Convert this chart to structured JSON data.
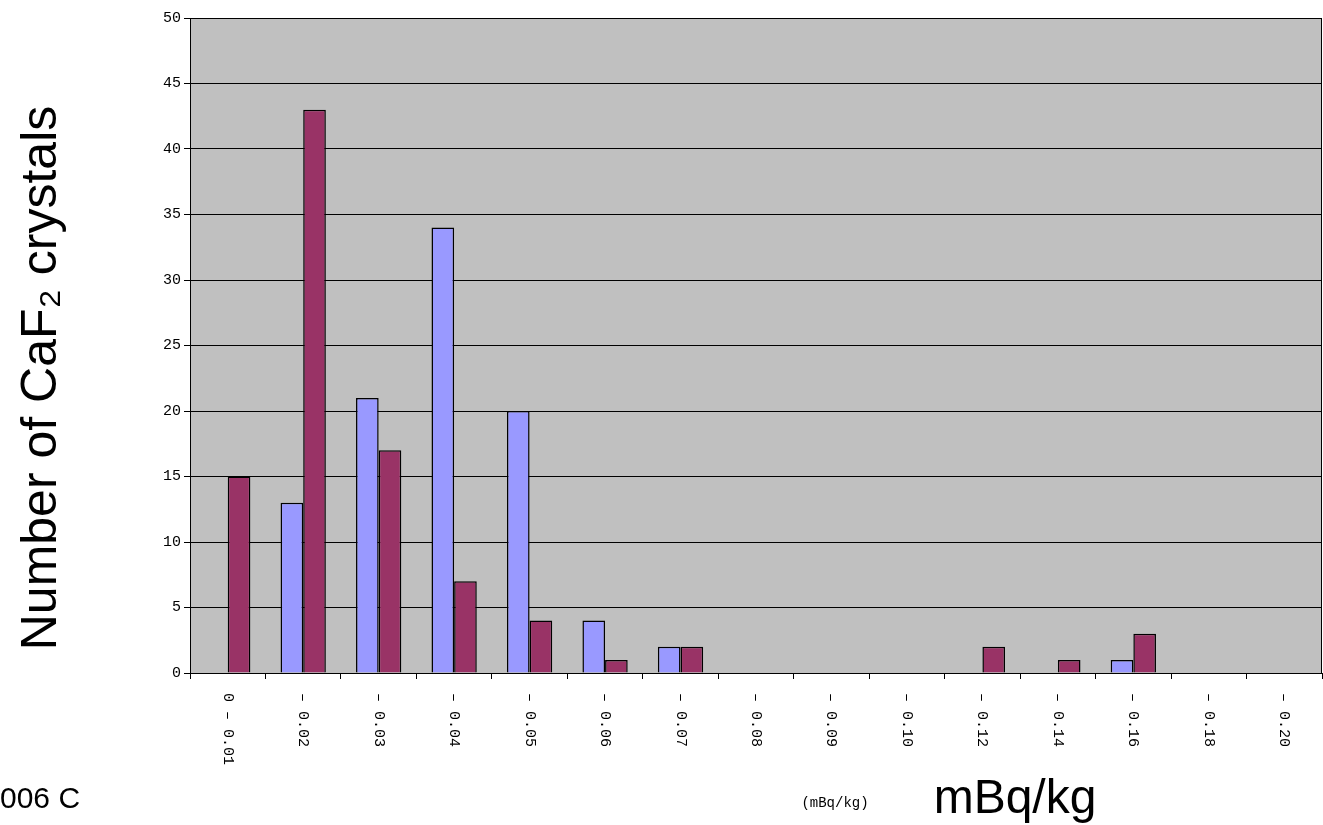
{
  "chart_data": {
    "type": "bar",
    "ylabel": "Number of CaF₂ crystals",
    "xlabel": "mBq/kg",
    "categories": [
      "0 – 0.01",
      "– 0.02",
      "– 0.03",
      "– 0.04",
      "– 0.05",
      "– 0.06",
      "– 0.07",
      "– 0.08",
      "– 0.09",
      "– 0.10",
      "– 0.12",
      "– 0.14",
      "– 0.16",
      "– 0.18",
      "– 0.20"
    ],
    "series": [
      {
        "color": "#9999ff",
        "values": [
          0,
          13,
          21,
          34,
          20,
          4,
          2,
          0,
          0,
          0,
          0,
          0,
          1,
          0,
          0
        ]
      },
      {
        "color": "#993366",
        "values": [
          15,
          43,
          17,
          7,
          4,
          1,
          2,
          0,
          0,
          0,
          2,
          1,
          3,
          0,
          0
        ]
      }
    ],
    "ylim": [
      0,
      50
    ],
    "yticks": [
      0,
      5,
      10,
      15,
      20,
      25,
      30,
      35,
      40,
      45,
      50
    ],
    "grid": "y",
    "annotations": [
      "(mBq/kg)",
      "006 C"
    ]
  }
}
